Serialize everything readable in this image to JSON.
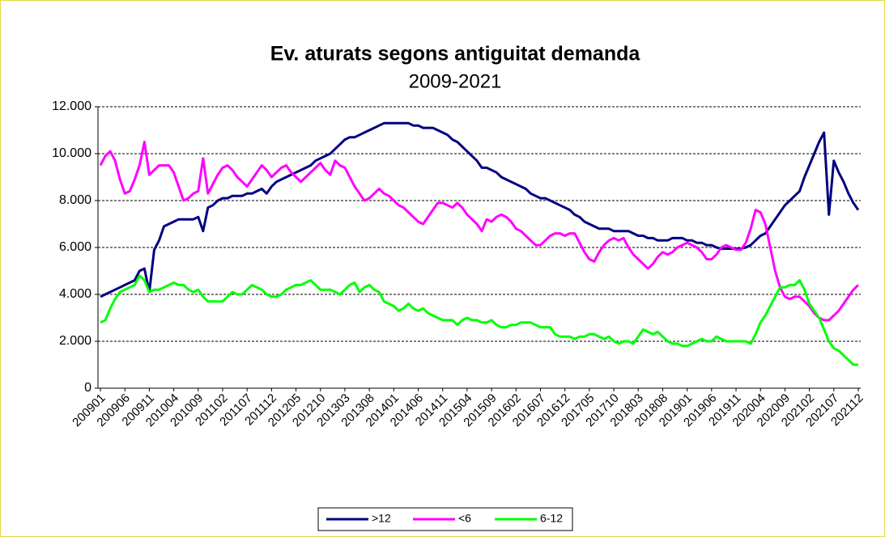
{
  "chart_data": {
    "type": "line",
    "title": "Ev. aturats segons antiguitat demanda",
    "subtitle": "2009-2021",
    "categories": [
      "200901",
      null,
      null,
      null,
      null,
      "200906",
      null,
      null,
      null,
      null,
      "200911",
      null,
      null,
      null,
      null,
      "201004",
      null,
      null,
      null,
      null,
      "201009",
      null,
      null,
      null,
      null,
      "201102",
      null,
      null,
      null,
      null,
      "201107",
      null,
      null,
      null,
      null,
      "201112",
      null,
      null,
      null,
      null,
      "201205",
      null,
      null,
      null,
      null,
      "201210",
      null,
      null,
      null,
      null,
      "201303",
      null,
      null,
      null,
      null,
      "201308",
      null,
      null,
      null,
      null,
      "201401",
      null,
      null,
      null,
      null,
      "201406",
      null,
      null,
      null,
      null,
      "201411",
      null,
      null,
      null,
      null,
      "201504",
      null,
      null,
      null,
      null,
      "201509",
      null,
      null,
      null,
      null,
      "201602",
      null,
      null,
      null,
      null,
      "201607",
      null,
      null,
      null,
      null,
      "201612",
      null,
      null,
      null,
      null,
      "201705",
      null,
      null,
      null,
      null,
      "201710",
      null,
      null,
      null,
      null,
      "201803",
      null,
      null,
      null,
      null,
      "201808",
      null,
      null,
      null,
      null,
      "201901",
      null,
      null,
      null,
      null,
      "201906",
      null,
      null,
      null,
      null,
      "201911",
      null,
      null,
      null,
      null,
      "202004",
      null,
      null,
      null,
      null,
      "202009",
      null,
      null,
      null,
      null,
      "202102",
      null,
      null,
      null,
      null,
      "202107",
      null,
      null,
      null,
      null,
      "202112"
    ],
    "series": [
      {
        "name": ">12",
        "color": "#000080",
        "values": [
          3900,
          4000,
          4100,
          4200,
          4300,
          4400,
          4500,
          4600,
          5000,
          5100,
          4100,
          5900,
          6300,
          6900,
          7000,
          7100,
          7200,
          7200,
          7200,
          7200,
          7300,
          6700,
          7700,
          7800,
          8000,
          8100,
          8100,
          8200,
          8200,
          8200,
          8300,
          8300,
          8400,
          8500,
          8300,
          8600,
          8800,
          8900,
          9000,
          9100,
          9200,
          9300,
          9400,
          9500,
          9700,
          9800,
          9900,
          10000,
          10200,
          10400,
          10600,
          10700,
          10700,
          10800,
          10900,
          11000,
          11100,
          11200,
          11300,
          11300,
          11300,
          11300,
          11300,
          11300,
          11200,
          11200,
          11100,
          11100,
          11100,
          11000,
          10900,
          10800,
          10600,
          10500,
          10300,
          10100,
          9900,
          9700,
          9400,
          9400,
          9300,
          9200,
          9000,
          8900,
          8800,
          8700,
          8600,
          8500,
          8300,
          8200,
          8100,
          8100,
          8000,
          7900,
          7800,
          7700,
          7600,
          7400,
          7300,
          7100,
          7000,
          6900,
          6800,
          6800,
          6800,
          6700,
          6700,
          6700,
          6700,
          6600,
          6500,
          6500,
          6400,
          6400,
          6300,
          6300,
          6300,
          6400,
          6400,
          6400,
          6300,
          6300,
          6200,
          6200,
          6100,
          6100,
          6000,
          5950,
          5950,
          5950,
          5950,
          5950,
          6000,
          6100,
          6300,
          6500,
          6600,
          6900,
          7200,
          7500,
          7800,
          8000,
          8200,
          8400,
          9000,
          9500,
          10000,
          10500,
          10900,
          7400,
          9700,
          9200,
          8800,
          8300,
          7900,
          7600
        ]
      },
      {
        "name": "<6",
        "color": "#ff00ff",
        "values": [
          9500,
          9900,
          10100,
          9700,
          8900,
          8300,
          8400,
          8900,
          9500,
          10500,
          9100,
          9300,
          9500,
          9500,
          9500,
          9200,
          8600,
          8000,
          8100,
          8300,
          8400,
          9800,
          8300,
          8700,
          9100,
          9400,
          9500,
          9300,
          9000,
          8800,
          8600,
          8900,
          9200,
          9500,
          9300,
          9000,
          9200,
          9400,
          9500,
          9200,
          9000,
          8800,
          9000,
          9200,
          9400,
          9600,
          9300,
          9100,
          9700,
          9500,
          9400,
          9000,
          8600,
          8300,
          8000,
          8100,
          8300,
          8500,
          8300,
          8200,
          8000,
          7800,
          7700,
          7500,
          7300,
          7100,
          7000,
          7300,
          7600,
          7900,
          7900,
          7800,
          7700,
          7900,
          7700,
          7400,
          7200,
          7000,
          6700,
          7200,
          7100,
          7300,
          7400,
          7300,
          7100,
          6800,
          6700,
          6500,
          6300,
          6100,
          6100,
          6300,
          6500,
          6600,
          6600,
          6500,
          6600,
          6600,
          6200,
          5800,
          5500,
          5400,
          5800,
          6100,
          6300,
          6400,
          6300,
          6400,
          6000,
          5700,
          5500,
          5300,
          5100,
          5300,
          5600,
          5800,
          5700,
          5800,
          6000,
          6100,
          6200,
          6100,
          6000,
          5800,
          5500,
          5500,
          5700,
          6000,
          6100,
          6000,
          5900,
          5900,
          6200,
          6800,
          7600,
          7500,
          7000,
          6000,
          5000,
          4300,
          3900,
          3800,
          3900,
          3900,
          3700,
          3500,
          3200,
          3000,
          2900,
          2900,
          3100,
          3300,
          3600,
          3900,
          4200,
          4400
        ]
      },
      {
        "name": "6-12",
        "color": "#00ff00",
        "values": [
          2800,
          2900,
          3400,
          3800,
          4100,
          4200,
          4300,
          4400,
          4800,
          4600,
          4100,
          4200,
          4200,
          4300,
          4400,
          4500,
          4400,
          4400,
          4200,
          4100,
          4200,
          3900,
          3700,
          3700,
          3700,
          3700,
          3900,
          4100,
          4000,
          4000,
          4200,
          4400,
          4300,
          4200,
          4000,
          3900,
          3900,
          4000,
          4200,
          4300,
          4400,
          4400,
          4500,
          4600,
          4400,
          4200,
          4200,
          4200,
          4100,
          4000,
          4200,
          4400,
          4500,
          4100,
          4300,
          4400,
          4200,
          4100,
          3700,
          3600,
          3500,
          3300,
          3400,
          3600,
          3400,
          3300,
          3400,
          3200,
          3100,
          3000,
          2900,
          2900,
          2900,
          2700,
          2900,
          3000,
          2900,
          2900,
          2800,
          2800,
          2900,
          2700,
          2600,
          2600,
          2700,
          2700,
          2800,
          2800,
          2800,
          2700,
          2600,
          2600,
          2600,
          2300,
          2200,
          2200,
          2200,
          2100,
          2200,
          2200,
          2300,
          2300,
          2200,
          2100,
          2200,
          2000,
          1900,
          2000,
          2000,
          1900,
          2200,
          2500,
          2400,
          2300,
          2400,
          2200,
          2000,
          1900,
          1900,
          1800,
          1800,
          1900,
          2000,
          2100,
          2000,
          2000,
          2200,
          2100,
          2000,
          2000,
          2000,
          2000,
          2000,
          1900,
          2300,
          2800,
          3100,
          3500,
          3900,
          4300,
          4300,
          4400,
          4400,
          4600,
          4200,
          3600,
          3300,
          3000,
          2500,
          2000,
          1700,
          1600,
          1400,
          1200,
          1000,
          1000
        ]
      }
    ],
    "ylim": [
      0,
      12000
    ],
    "yticks": [
      0,
      {
        "value": 2000,
        "label": "2.000"
      },
      {
        "value": 4000,
        "label": "4.000"
      },
      {
        "value": 6000,
        "label": "6.000"
      },
      {
        "value": 8000,
        "label": "8.000"
      },
      {
        "value": 10000,
        "label": "10.000"
      },
      {
        "value": 12000,
        "label": "12.000"
      }
    ],
    "grid": true,
    "legend": "bottom"
  }
}
